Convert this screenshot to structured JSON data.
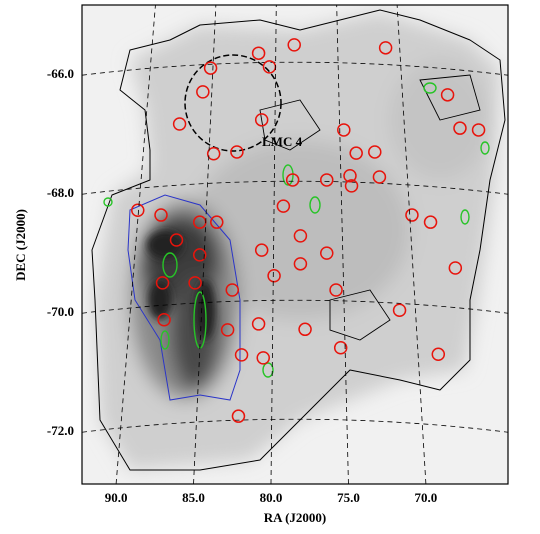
{
  "chart_data": {
    "type": "scatter",
    "xlabel": "RA (J2000)",
    "ylabel": "DEC (J2000)",
    "annotations": [
      {
        "text": "LMC 4"
      }
    ],
    "xlim": [
      92.2,
      64.7
    ],
    "ylim": [
      -72.87,
      -64.82
    ],
    "xticks": [
      {
        "value": 90,
        "label": "90.0"
      },
      {
        "value": 85,
        "label": "85.0"
      },
      {
        "value": 80,
        "label": "80.0"
      },
      {
        "value": 75,
        "label": "75.0"
      },
      {
        "value": 70,
        "label": "70.0"
      }
    ],
    "yticks": [
      {
        "value": -66,
        "label": "-66.0"
      },
      {
        "value": -68,
        "label": "-68.0"
      },
      {
        "value": -70,
        "label": "-70.0"
      },
      {
        "value": -72,
        "label": "-72.0"
      }
    ],
    "grid": true,
    "series": [
      {
        "color": "#e8140c",
        "x": [
          80.8,
          78.5,
          72.6,
          83.9,
          80.1,
          84.4,
          85.9,
          80.6,
          82.2,
          83.7,
          73.3,
          74.5,
          75.3,
          67.8,
          66.6,
          68.6,
          78.6,
          76.4,
          74.9,
          74.8,
          73.0,
          70.9,
          69.7,
          88.6,
          87.1,
          86.1,
          84.6,
          83.5,
          84.6,
          87.0,
          84.9,
          82.5,
          80.6,
          78.1,
          79.8,
          78.1,
          76.4,
          75.8,
          80.8,
          82.8,
          77.8,
          75.5,
          71.7,
          81.9,
          80.5,
          86.9,
          69.2,
          68.1,
          82.1,
          79.2
        ],
        "y": [
          -65.63,
          -65.49,
          -65.54,
          -65.88,
          -65.86,
          -66.28,
          -66.82,
          -66.75,
          -67.29,
          -67.32,
          -67.29,
          -67.31,
          -66.92,
          -66.89,
          -66.92,
          -66.33,
          -67.76,
          -67.76,
          -67.69,
          -67.86,
          -67.71,
          -68.35,
          -68.47,
          -68.27,
          -68.35,
          -68.77,
          -68.47,
          -68.47,
          -69.02,
          -69.49,
          -69.49,
          -69.61,
          -68.94,
          -68.7,
          -69.37,
          -69.17,
          -68.99,
          -69.61,
          -70.18,
          -70.28,
          -70.27,
          -70.58,
          -69.95,
          -70.7,
          -70.75,
          -70.11,
          -70.69,
          -69.24,
          -71.73,
          -68.2
        ]
      }
    ]
  }
}
